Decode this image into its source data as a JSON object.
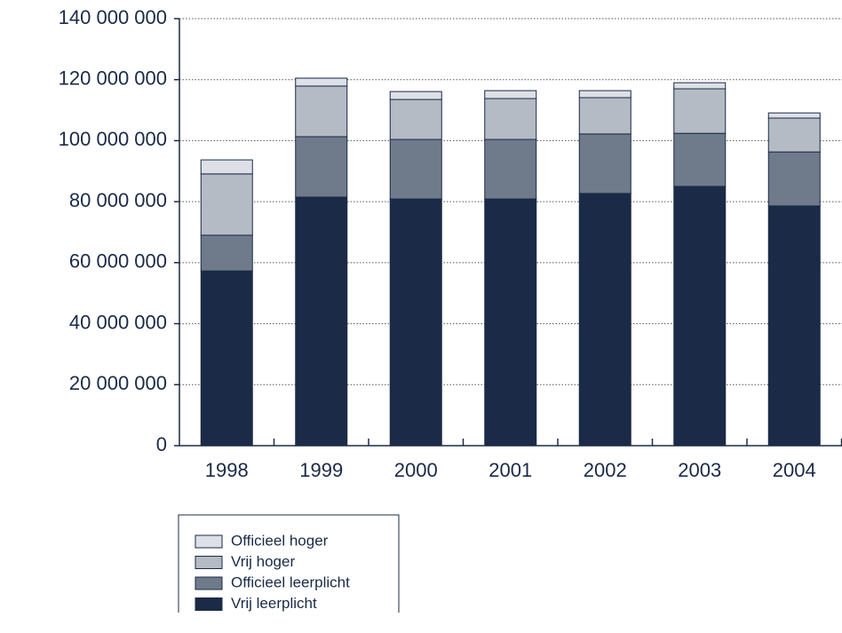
{
  "chart_data": {
    "type": "stacked_bar",
    "categories": [
      "1998",
      "1999",
      "2000",
      "2001",
      "2002",
      "2003",
      "2004"
    ],
    "series": [
      {
        "name": "Vrij leerplicht",
        "color": "#1b2a47",
        "values": [
          57300000,
          81500000,
          80900000,
          80900000,
          82700000,
          85000000,
          78600000
        ]
      },
      {
        "name": "Officieel leerplicht",
        "color": "#6f7b8b",
        "values": [
          11700000,
          19800000,
          19500000,
          19500000,
          19500000,
          17400000,
          17700000
        ]
      },
      {
        "name": "Vrij hoger",
        "color": "#b5bbc4",
        "values": [
          20100000,
          16600000,
          13100000,
          13400000,
          11900000,
          14600000,
          11100000
        ]
      },
      {
        "name": "Officieel hoger",
        "color": "#dde0e6",
        "values": [
          4600000,
          2600000,
          2600000,
          2600000,
          2300000,
          2000000,
          1700000
        ]
      }
    ],
    "ylim": [
      0,
      140000000
    ],
    "yticks": [
      0,
      {
        "value": 20000000,
        "label": "20 000 000"
      },
      {
        "value": 40000000,
        "label": "40 000 000"
      },
      {
        "value": 60000000,
        "label": "60 000 000"
      },
      {
        "value": 80000000,
        "label": "80 000 000"
      },
      {
        "value": 100000000,
        "label": "100 000 000"
      },
      {
        "value": 120000000,
        "label": "120 000 000"
      },
      {
        "value": 140000000,
        "label": "140 000 000"
      }
    ],
    "grid": true
  }
}
